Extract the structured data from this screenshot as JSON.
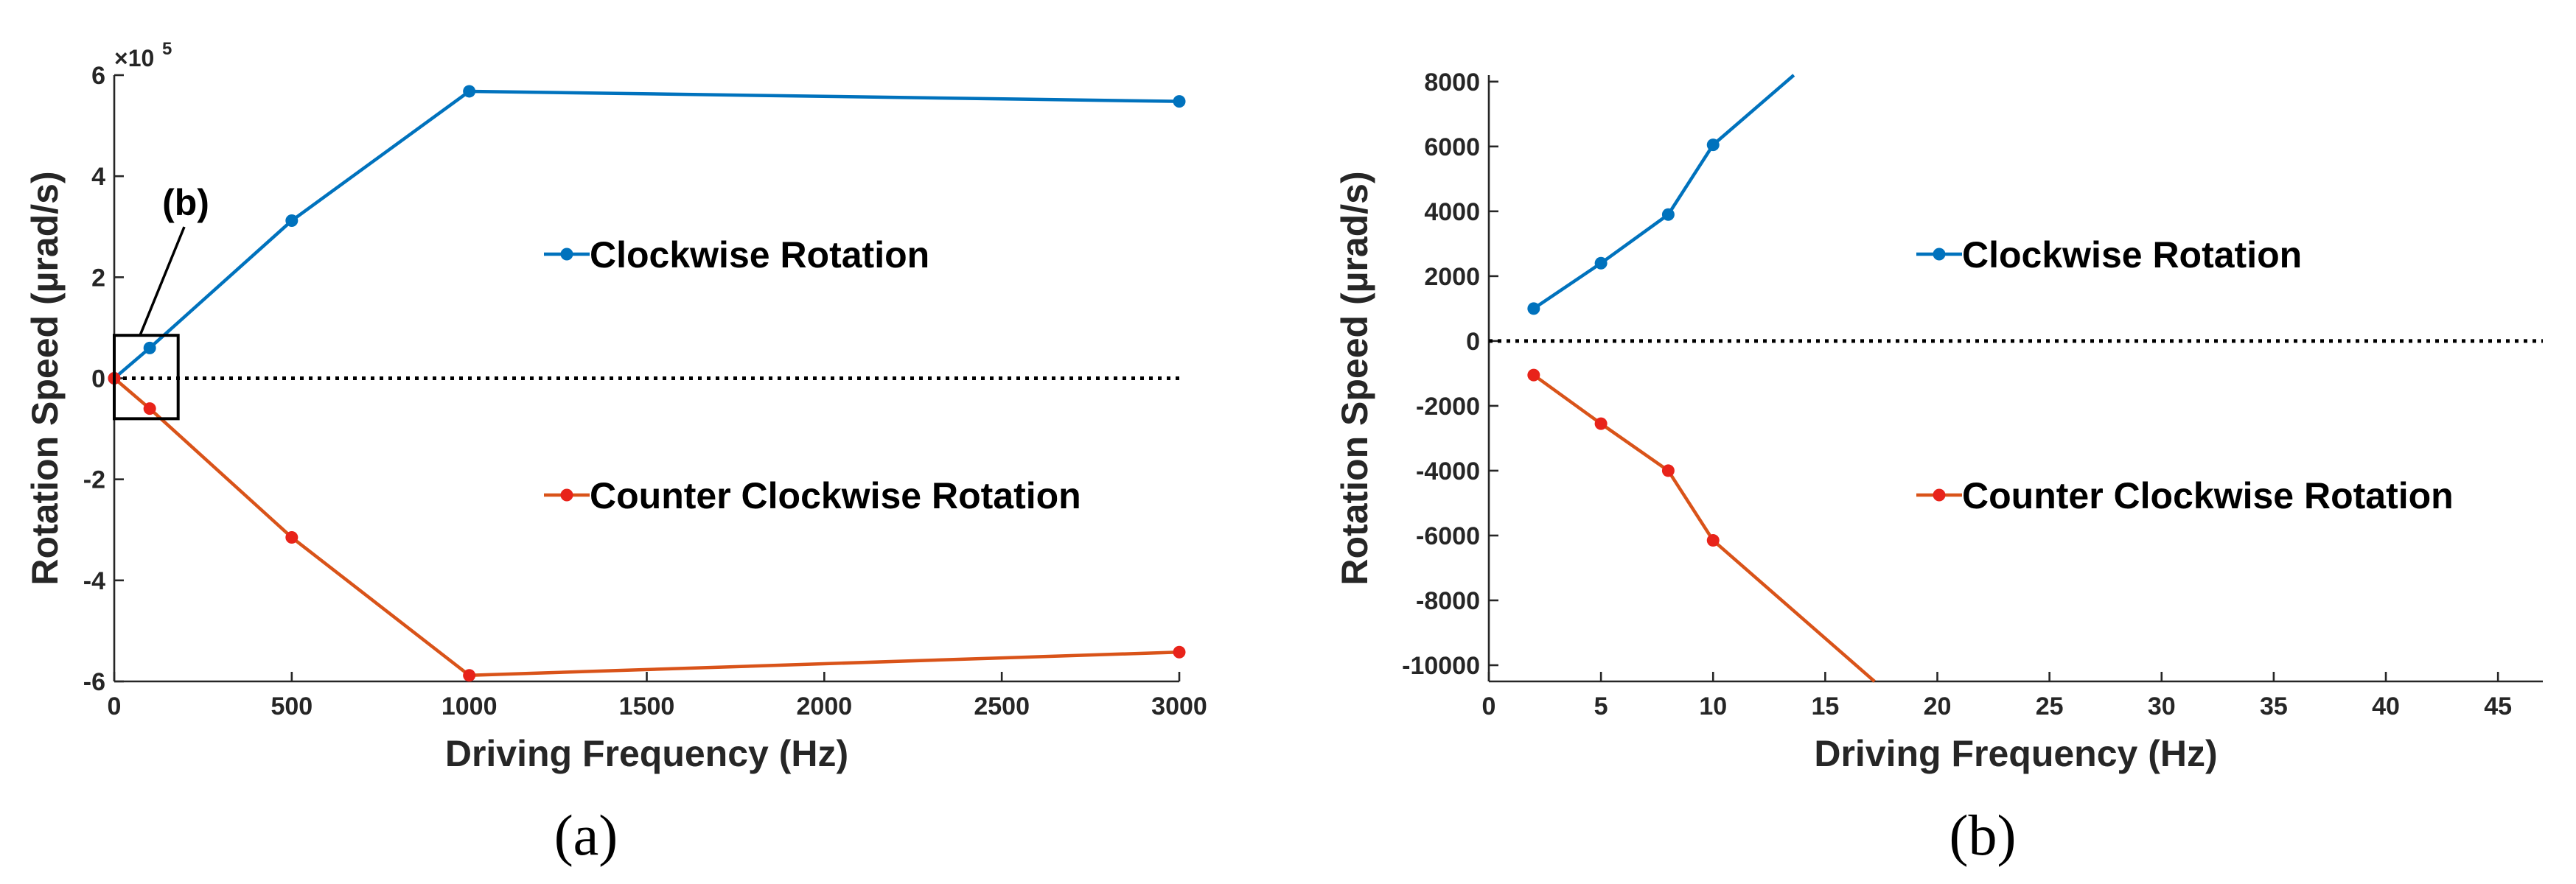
{
  "chart_data": [
    {
      "id": "a",
      "type": "line",
      "caption": "(a)",
      "xlabel": "Driving Frequency (Hz)",
      "ylabel": "Rotation Speed (µrad/s)",
      "xlim": [
        0,
        3000
      ],
      "ylim": [
        -600000,
        600000
      ],
      "xticks": [
        0,
        500,
        1000,
        1500,
        2000,
        2500,
        3000
      ],
      "xtick_labels": [
        "0",
        "500",
        "1000",
        "1500",
        "2000",
        "2500",
        "3000"
      ],
      "yticks": [
        -600000,
        -400000,
        -200000,
        0,
        200000,
        400000,
        600000
      ],
      "ytick_labels": [
        "-6",
        "-4",
        "-2",
        "0",
        "2",
        "4",
        "6"
      ],
      "y_exponent_label": "×10",
      "y_exponent_power": "5",
      "zero_reference_line": true,
      "annotation": {
        "text": "(b)",
        "box_x": [
          0,
          180
        ],
        "box_y": [
          -80000,
          85000
        ]
      },
      "series": [
        {
          "name": "Clockwise Rotation",
          "color": "#0072BD",
          "x": [
            0,
            100,
            500,
            1000,
            3000
          ],
          "y": [
            0,
            60000,
            312000,
            568000,
            548000
          ]
        },
        {
          "name": "Counter Clockwise Rotation",
          "color": "#D95319",
          "marker_color": "#E8231A",
          "x": [
            0,
            100,
            500,
            1000,
            3000
          ],
          "y": [
            0,
            -60000,
            -315000,
            -588000,
            -542000
          ]
        }
      ]
    },
    {
      "id": "b",
      "type": "line",
      "caption": "(b)",
      "xlabel": "Driving Frequency (Hz)",
      "ylabel": "Rotation Speed (µrad/s)",
      "xlim": [
        0,
        47
      ],
      "ylim": [
        -10500,
        8200
      ],
      "xticks": [
        0,
        5,
        10,
        15,
        20,
        25,
        30,
        35,
        40,
        45
      ],
      "xtick_labels": [
        "0",
        "5",
        "10",
        "15",
        "20",
        "25",
        "30",
        "35",
        "40",
        "45"
      ],
      "yticks": [
        -10000,
        -8000,
        -6000,
        -4000,
        -2000,
        0,
        2000,
        4000,
        6000,
        8000
      ],
      "ytick_labels": [
        "-10000",
        "-8000",
        "-6000",
        "-4000",
        "-2000",
        "0",
        "2000",
        "4000",
        "6000",
        "8000"
      ],
      "zero_reference_line": true,
      "series": [
        {
          "name": "Clockwise Rotation",
          "color": "#0072BD",
          "x": [
            2,
            5,
            8,
            10,
            13.6
          ],
          "y": [
            1000,
            2400,
            3900,
            6050,
            8200
          ],
          "markers_on": [
            true,
            true,
            true,
            true,
            false
          ]
        },
        {
          "name": "Counter Clockwise Rotation",
          "color": "#D95319",
          "marker_color": "#E8231A",
          "x": [
            2,
            5,
            8,
            10,
            17.2
          ],
          "y": [
            -1050,
            -2550,
            -4000,
            -6150,
            -10500
          ],
          "markers_on": [
            true,
            true,
            true,
            true,
            false
          ]
        }
      ]
    }
  ]
}
